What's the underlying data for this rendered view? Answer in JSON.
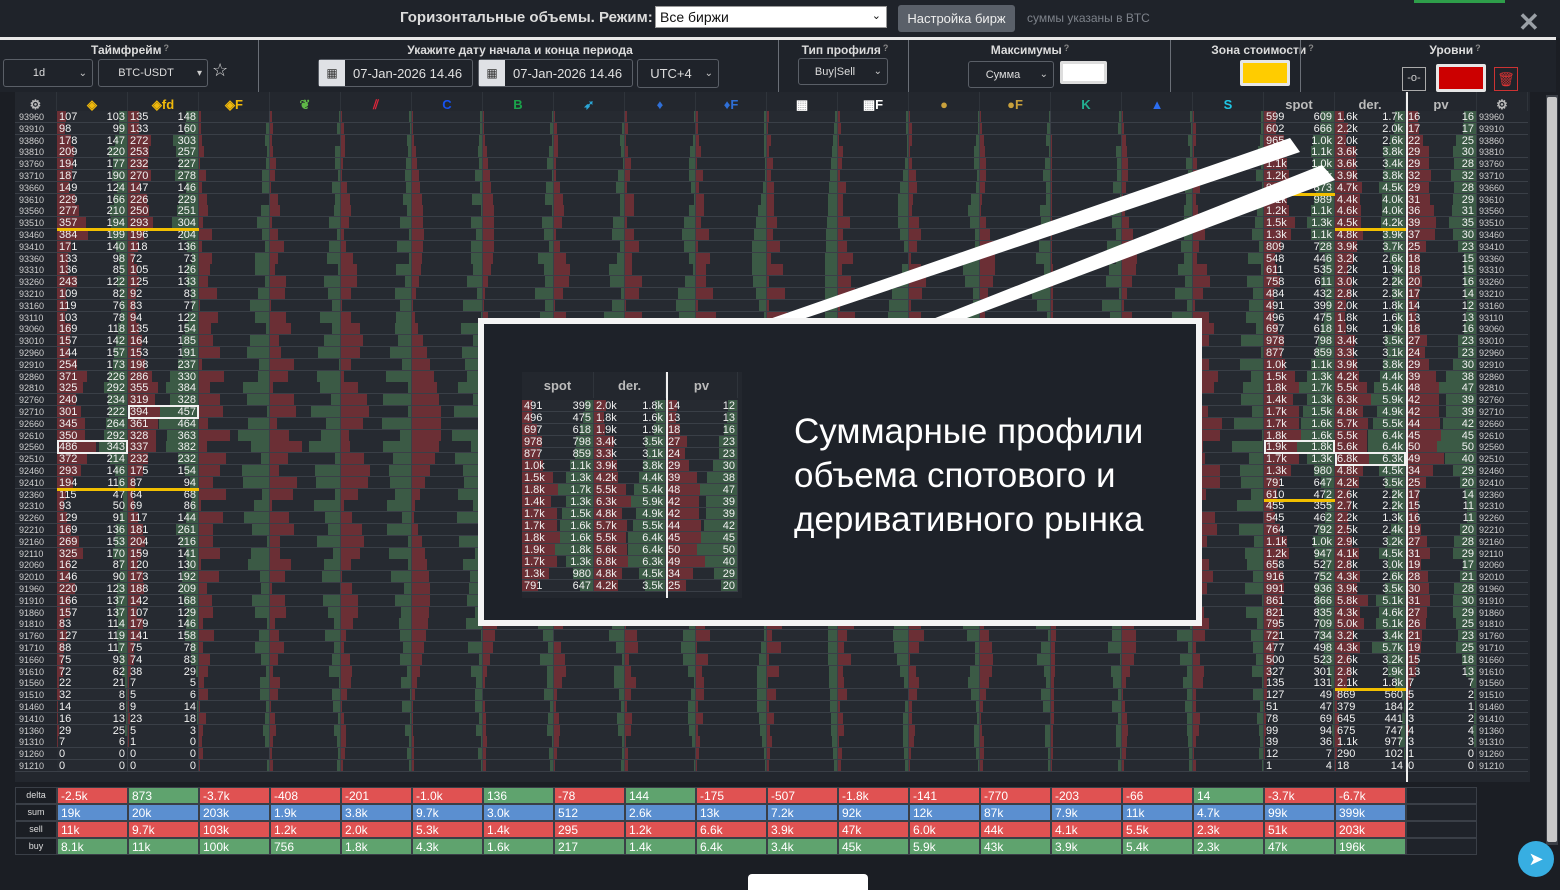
{
  "topbar": {
    "title": "Горизонтальные объемы. Режим:",
    "mode": "Все биржи",
    "settings_button": "Настройка бирж",
    "units_note": "суммы указаны в BTC",
    "close_icon": "close-icon"
  },
  "controls": {
    "timeframe": {
      "title": "Таймфрейм",
      "value": "1d",
      "symbol": "BTC-USDT"
    },
    "period": {
      "title": "Укажите дату начала и конца периода",
      "start": "07-Jan-2026 14.46",
      "end": "07-Jan-2026 14.46",
      "timezone": "UTC+4"
    },
    "profile_type": {
      "title": "Тип профиля",
      "value": "Buy|Sell"
    },
    "maxima": {
      "title": "Максимумы",
      "value": "Сумма",
      "color": "#ffffff"
    },
    "value_zone": {
      "title": "Зона стоимости",
      "color": "#ffcc00"
    },
    "levels": {
      "title": "Уровни",
      "color": "#cc0000"
    }
  },
  "columns": [
    {
      "icon": "binance-icon",
      "label": "",
      "color": "#f0b90b"
    },
    {
      "icon": "binance-icon",
      "label": "fd",
      "color": "#f0b90b"
    },
    {
      "icon": "binance-icon",
      "label": "F",
      "color": "#f0b90b"
    },
    {
      "icon": "bitfinex-leaf-icon",
      "label": "",
      "color": "#5fb847"
    },
    {
      "icon": "bybit-icon",
      "label": "",
      "color": "#e0263b"
    },
    {
      "icon": "coinbase-icon",
      "label": "",
      "color": "#1652f0"
    },
    {
      "icon": "bitstamp-icon",
      "label": "",
      "color": "#1aa34a"
    },
    {
      "icon": "bird-icon",
      "label": "",
      "color": "#2aa7d8"
    },
    {
      "icon": "drop-icon",
      "label": "",
      "color": "#2f6fd6"
    },
    {
      "icon": "drop-icon",
      "label": "F",
      "color": "#2f6fd6"
    },
    {
      "icon": "okx-icon",
      "label": "",
      "color": "#ffffff"
    },
    {
      "icon": "okx-icon",
      "label": "F",
      "color": "#ffffff"
    },
    {
      "icon": "coin-icon",
      "label": "",
      "color": "#c9a13c"
    },
    {
      "icon": "coin-icon",
      "label": "F",
      "color": "#c9a13c"
    },
    {
      "icon": "kucoin-icon",
      "label": "",
      "color": "#23af91"
    },
    {
      "icon": "mexc-icon",
      "label": "",
      "color": "#2b6df0"
    },
    {
      "icon": "s-exchange-icon",
      "label": "",
      "color": "#1fc7e6"
    },
    {
      "icon": "",
      "label": "spot",
      "color": "#bbbbbb"
    },
    {
      "icon": "",
      "label": "der.",
      "color": "#bbbbbb"
    },
    {
      "icon": "",
      "label": "pv",
      "color": "#bbbbbb"
    }
  ],
  "grid": {
    "row_fields": [
      "price",
      "binance_sell",
      "binance_buy",
      "binance_fd_sell",
      "binance_fd_buy",
      "spot_sell",
      "spot_buy",
      "der_sell",
      "der_buy",
      "pv_sell",
      "pv_buy"
    ],
    "rows": [
      [
        "93960",
        "107",
        "103",
        "135",
        "148",
        "599",
        "609",
        "1.6k",
        "1.7k",
        "16",
        "16"
      ],
      [
        "93910",
        "98",
        "99",
        "133",
        "160",
        "602",
        "666",
        "2.2k",
        "2.0k",
        "17",
        "17"
      ],
      [
        "93860",
        "178",
        "147",
        "272",
        "303",
        "965",
        "1.0k",
        "2.0k",
        "2.6k",
        "22",
        "25"
      ],
      [
        "93810",
        "209",
        "220",
        "253",
        "257",
        "1.1k",
        "1.1k",
        "3.6k",
        "3.8k",
        "29",
        "30"
      ],
      [
        "93760",
        "194",
        "177",
        "232",
        "227",
        "1.1k",
        "1.0k",
        "3.6k",
        "3.4k",
        "29",
        "28"
      ],
      [
        "93710",
        "187",
        "190",
        "270",
        "278",
        "1.2k",
        "1.2k",
        "3.9k",
        "3.8k",
        "32",
        "32"
      ],
      [
        "93660",
        "149",
        "124",
        "147",
        "146",
        "910",
        "873",
        "4.7k",
        "4.5k",
        "29",
        "28"
      ],
      [
        "93610",
        "229",
        "166",
        "226",
        "229",
        "1.1k",
        "989",
        "4.4k",
        "4.0k",
        "31",
        "29"
      ],
      [
        "93560",
        "277",
        "210",
        "250",
        "251",
        "1.2k",
        "1.1k",
        "4.6k",
        "4.0k",
        "36",
        "31"
      ],
      [
        "93510",
        "357",
        "194",
        "293",
        "304",
        "1.5k",
        "1.3k",
        "4.5k",
        "4.2k",
        "39",
        "35"
      ],
      [
        "93460",
        "384",
        "199",
        "196",
        "204",
        "1.3k",
        "1.1k",
        "4.8k",
        "3.9k",
        "37",
        "30"
      ],
      [
        "93410",
        "171",
        "140",
        "118",
        "136",
        "809",
        "728",
        "3.9k",
        "3.7k",
        "25",
        "23"
      ],
      [
        "93360",
        "133",
        "98",
        "72",
        "73",
        "548",
        "446",
        "3.2k",
        "2.6k",
        "18",
        "15"
      ],
      [
        "93310",
        "136",
        "85",
        "105",
        "126",
        "611",
        "535",
        "2.2k",
        "1.9k",
        "18",
        "15"
      ],
      [
        "93260",
        "243",
        "122",
        "125",
        "133",
        "758",
        "611",
        "3.0k",
        "2.2k",
        "20",
        "16"
      ],
      [
        "93210",
        "109",
        "82",
        "92",
        "83",
        "484",
        "432",
        "2.8k",
        "2.3k",
        "17",
        "14"
      ],
      [
        "93160",
        "119",
        "76",
        "83",
        "77",
        "491",
        "399",
        "2.0k",
        "1.8k",
        "14",
        "12"
      ],
      [
        "93110",
        "103",
        "78",
        "94",
        "122",
        "496",
        "475",
        "1.8k",
        "1.6k",
        "13",
        "13"
      ],
      [
        "93060",
        "169",
        "118",
        "135",
        "154",
        "697",
        "618",
        "1.9k",
        "1.9k",
        "18",
        "16"
      ],
      [
        "93010",
        "157",
        "142",
        "164",
        "185",
        "978",
        "798",
        "3.4k",
        "3.5k",
        "27",
        "23"
      ],
      [
        "92960",
        "144",
        "157",
        "153",
        "191",
        "877",
        "859",
        "3.3k",
        "3.1k",
        "24",
        "23"
      ],
      [
        "92910",
        "254",
        "173",
        "198",
        "237",
        "1.0k",
        "1.1k",
        "3.9k",
        "3.8k",
        "29",
        "30"
      ],
      [
        "92860",
        "371",
        "226",
        "286",
        "330",
        "1.5k",
        "1.3k",
        "4.2k",
        "4.4k",
        "39",
        "38"
      ],
      [
        "92810",
        "325",
        "292",
        "355",
        "384",
        "1.8k",
        "1.7k",
        "5.5k",
        "5.4k",
        "48",
        "47"
      ],
      [
        "92760",
        "240",
        "234",
        "319",
        "328",
        "1.4k",
        "1.3k",
        "6.3k",
        "5.9k",
        "42",
        "39"
      ],
      [
        "92710",
        "301",
        "222",
        "394",
        "457",
        "1.7k",
        "1.5k",
        "4.8k",
        "4.9k",
        "42",
        "39"
      ],
      [
        "92660",
        "345",
        "264",
        "361",
        "464",
        "1.7k",
        "1.6k",
        "5.7k",
        "5.5k",
        "44",
        "42"
      ],
      [
        "92610",
        "350",
        "292",
        "328",
        "363",
        "1.8k",
        "1.6k",
        "5.5k",
        "6.4k",
        "45",
        "45"
      ],
      [
        "92560",
        "486",
        "343",
        "337",
        "382",
        "1.9k",
        "1.8k",
        "5.6k",
        "6.4k",
        "50",
        "50"
      ],
      [
        "92510",
        "372",
        "214",
        "232",
        "232",
        "1.7k",
        "1.3k",
        "6.8k",
        "6.3k",
        "49",
        "40"
      ],
      [
        "92460",
        "293",
        "146",
        "175",
        "154",
        "1.3k",
        "980",
        "4.8k",
        "4.5k",
        "34",
        "29"
      ],
      [
        "92410",
        "194",
        "116",
        "87",
        "94",
        "791",
        "647",
        "4.2k",
        "3.5k",
        "25",
        "20"
      ],
      [
        "92360",
        "115",
        "47",
        "64",
        "68",
        "610",
        "472",
        "2.6k",
        "2.2k",
        "17",
        "14"
      ],
      [
        "92310",
        "93",
        "50",
        "69",
        "86",
        "455",
        "355",
        "2.7k",
        "2.2k",
        "15",
        "11"
      ],
      [
        "92260",
        "129",
        "91",
        "117",
        "144",
        "545",
        "462",
        "2.2k",
        "1.3k",
        "16",
        "11"
      ],
      [
        "92210",
        "169",
        "136",
        "181",
        "261",
        "764",
        "792",
        "2.5k",
        "2.4k",
        "19",
        "20"
      ],
      [
        "92160",
        "269",
        "153",
        "204",
        "216",
        "1.1k",
        "1.0k",
        "2.9k",
        "3.2k",
        "27",
        "28"
      ],
      [
        "92110",
        "325",
        "170",
        "159",
        "141",
        "1.2k",
        "947",
        "4.1k",
        "4.5k",
        "31",
        "29"
      ],
      [
        "92060",
        "162",
        "87",
        "120",
        "130",
        "658",
        "527",
        "2.8k",
        "3.0k",
        "19",
        "17"
      ],
      [
        "92010",
        "146",
        "90",
        "173",
        "192",
        "916",
        "752",
        "4.3k",
        "2.6k",
        "28",
        "21"
      ],
      [
        "91960",
        "220",
        "123",
        "188",
        "209",
        "991",
        "936",
        "3.9k",
        "3.5k",
        "30",
        "28"
      ],
      [
        "91910",
        "166",
        "137",
        "142",
        "168",
        "861",
        "866",
        "5.8k",
        "5.1k",
        "31",
        "30"
      ],
      [
        "91860",
        "157",
        "137",
        "107",
        "129",
        "821",
        "835",
        "4.3k",
        "4.6k",
        "27",
        "29"
      ],
      [
        "91810",
        "83",
        "114",
        "179",
        "146",
        "795",
        "709",
        "5.0k",
        "5.1k",
        "26",
        "25"
      ],
      [
        "91760",
        "127",
        "119",
        "141",
        "158",
        "721",
        "734",
        "3.2k",
        "3.4k",
        "21",
        "23"
      ],
      [
        "91710",
        "88",
        "117",
        "75",
        "78",
        "477",
        "498",
        "4.3k",
        "5.7k",
        "19",
        "25"
      ],
      [
        "91660",
        "75",
        "93",
        "74",
        "83",
        "500",
        "523",
        "2.6k",
        "3.2k",
        "15",
        "18"
      ],
      [
        "91610",
        "72",
        "62",
        "38",
        "29",
        "327",
        "301",
        "2.8k",
        "2.9k",
        "13",
        "13"
      ],
      [
        "91560",
        "22",
        "21",
        "7",
        "5",
        "135",
        "131",
        "2.1k",
        "1.8k",
        "7",
        "7"
      ],
      [
        "91510",
        "32",
        "8",
        "5",
        "6",
        "127",
        "49",
        "869",
        "560",
        "5",
        "2"
      ],
      [
        "91460",
        "14",
        "8",
        "9",
        "14",
        "51",
        "47",
        "379",
        "184",
        "2",
        "1"
      ],
      [
        "91410",
        "16",
        "13",
        "23",
        "18",
        "78",
        "69",
        "645",
        "441",
        "3",
        "2"
      ],
      [
        "91360",
        "29",
        "25",
        "5",
        "3",
        "99",
        "94",
        "675",
        "747",
        "4",
        "4"
      ],
      [
        "91310",
        "7",
        "6",
        "1",
        "0",
        "39",
        "36",
        "1.1k",
        "977",
        "3",
        "3"
      ],
      [
        "91260",
        "0",
        "0",
        "0",
        "0",
        "12",
        "7",
        "290",
        "102",
        "1",
        "0"
      ],
      [
        "91210",
        "0",
        "0",
        "0",
        "0",
        "1",
        "4",
        "18",
        "14",
        "0",
        "0"
      ]
    ],
    "max_levels": {
      "binance": "92560",
      "binance_fd": "92710",
      "spot": "92560",
      "der": "92510"
    },
    "value_area": {
      "binance": [
        "93460",
        "92410"
      ],
      "binance_fd": [
        "93460",
        "92410"
      ],
      "spot": [
        "93610",
        "92360"
      ],
      "der": [
        "93460",
        "91560"
      ]
    }
  },
  "totals": {
    "labels": [
      "delta",
      "sum",
      "sell",
      "buy"
    ],
    "delta": [
      "-2.5k",
      "873",
      "-3.7k",
      "-408",
      "-201",
      "-1.0k",
      "136",
      "-78",
      "144",
      "-175",
      "-507",
      "-1.8k",
      "-141",
      "-770",
      "-203",
      "-66",
      "14",
      "-3.7k",
      "-6.7k"
    ],
    "sum": [
      "19k",
      "20k",
      "203k",
      "1.9k",
      "3.8k",
      "9.7k",
      "3.0k",
      "512",
      "2.6k",
      "13k",
      "7.2k",
      "92k",
      "12k",
      "87k",
      "7.9k",
      "11k",
      "4.7k",
      "99k",
      "399k"
    ],
    "sell": [
      "11k",
      "9.7k",
      "103k",
      "1.2k",
      "2.0k",
      "5.3k",
      "1.4k",
      "295",
      "1.2k",
      "6.6k",
      "3.9k",
      "47k",
      "6.0k",
      "44k",
      "4.1k",
      "5.5k",
      "2.3k",
      "51k",
      "203k"
    ],
    "buy": [
      "8.1k",
      "11k",
      "100k",
      "756",
      "1.8k",
      "4.3k",
      "1.6k",
      "217",
      "1.4k",
      "6.4k",
      "3.4k",
      "45k",
      "5.9k",
      "43k",
      "3.9k",
      "5.4k",
      "2.3k",
      "47k",
      "196k"
    ]
  },
  "colors": {
    "sell": "#e05252",
    "buy": "#5fa36e",
    "sum": "#5b8fd0",
    "bar_sell": "#6b2f35",
    "bar_buy": "#3b5a45"
  },
  "overlay": {
    "text": "Суммарные профили объема спотового и деривативного рынка",
    "inset_headers": [
      "spot",
      "der.",
      "pv"
    ],
    "inset_from": "93160",
    "inset_to": "92410"
  }
}
